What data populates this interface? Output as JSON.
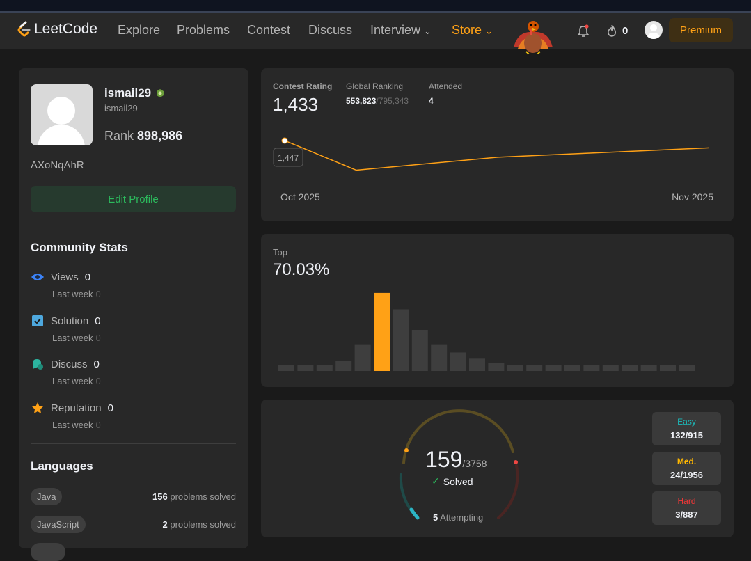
{
  "nav": {
    "logo_text": "LeetCode",
    "items": [
      "Explore",
      "Problems",
      "Contest",
      "Discuss"
    ],
    "interview": "Interview",
    "store": "Store",
    "streak_count": "0",
    "premium": "Premium"
  },
  "profile": {
    "display_name": "ismail29",
    "handle": "ismail29",
    "rank_label": "Rank",
    "rank_value": "898,986",
    "bio": "AXoNqAhR",
    "edit_button": "Edit Profile"
  },
  "community": {
    "title": "Community Stats",
    "last_week_label": "Last week",
    "stats": [
      {
        "label": "Views",
        "value": "0",
        "last_week": "0"
      },
      {
        "label": "Solution",
        "value": "0",
        "last_week": "0"
      },
      {
        "label": "Discuss",
        "value": "0",
        "last_week": "0"
      },
      {
        "label": "Reputation",
        "value": "0",
        "last_week": "0"
      }
    ]
  },
  "languages": {
    "title": "Languages",
    "suffix": "problems solved",
    "items": [
      {
        "name": "Java",
        "count": "156"
      },
      {
        "name": "JavaScript",
        "count": "2"
      }
    ]
  },
  "contest": {
    "rating_label": "Contest Rating",
    "rating": "1,433",
    "global_label": "Global Ranking",
    "global_rank": "553,823",
    "global_total": "/795,343",
    "attended_label": "Attended",
    "attended": "4",
    "tooltip": "1,447",
    "x_start": "Oct 2025",
    "x_end": "Nov 2025"
  },
  "top": {
    "label": "Top",
    "percent": "70.03%"
  },
  "solved": {
    "count": "159",
    "total": "/3758",
    "solved_label": "Solved",
    "attempting_count": "5",
    "attempting_label": "Attempting",
    "easy_label": "Easy",
    "easy": "132/915",
    "medium_label": "Med.",
    "medium": "24/1956",
    "hard_label": "Hard",
    "hard": "3/887"
  },
  "chart_data": [
    {
      "type": "line",
      "title": "Contest Rating",
      "x": [
        "Oct 2025",
        "",
        "",
        "Nov 2025"
      ],
      "values": [
        1447,
        1390,
        1415,
        1433
      ],
      "ylim": [
        1380,
        1455
      ],
      "highlight_label": "1,447",
      "color": "#ffa116"
    },
    {
      "type": "bar",
      "title": "Top 70.03%",
      "values": [
        3,
        3,
        3,
        5,
        13,
        38,
        30,
        20,
        13,
        9,
        6,
        4,
        3,
        3,
        3,
        3,
        3,
        3,
        3,
        3,
        3,
        3
      ],
      "highlight_index": 5,
      "ylim": [
        0,
        40
      ],
      "colors": {
        "bar": "#3e3e3e",
        "highlight": "#ffa116"
      }
    }
  ]
}
